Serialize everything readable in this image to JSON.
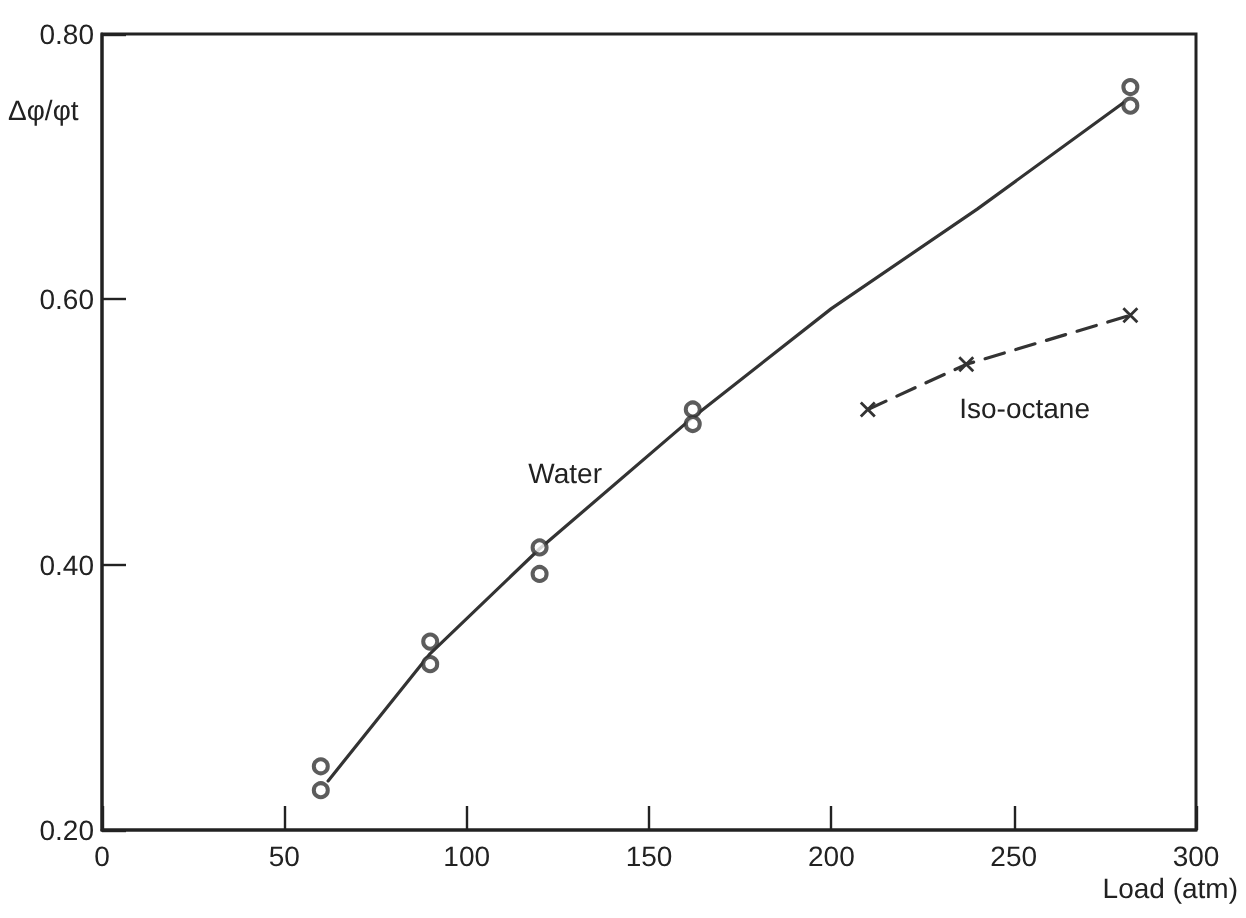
{
  "chart_data": {
    "type": "scatter",
    "ylabel": "Δφ/φt",
    "xlabel": "Load (atm)",
    "xlim": [
      0,
      300
    ],
    "xticks": [
      0,
      50,
      100,
      150,
      200,
      250,
      300
    ],
    "ylim": [
      0.2,
      0.8
    ],
    "yticks": [
      {
        "value": 0.2,
        "label": "0.20"
      },
      {
        "value": 0.4,
        "label": "0.40"
      },
      {
        "value": 0.6,
        "label": "0.60"
      },
      {
        "value": 0.8,
        "label": "0.80"
      }
    ],
    "grid": false,
    "series": [
      {
        "type": "scatter",
        "marker": "circle",
        "color": "#333333",
        "x": [
          60,
          60,
          90,
          90,
          120,
          120,
          162,
          162,
          282,
          282
        ],
        "values": [
          0.248,
          0.23,
          0.342,
          0.325,
          0.413,
          0.393,
          0.517,
          0.506,
          0.76,
          0.746
        ]
      },
      {
        "type": "line",
        "marker": "none",
        "line_style": "solid",
        "color": "#333333",
        "x": [
          62,
          90,
          120,
          162,
          200,
          240,
          280
        ],
        "values": [
          0.237,
          0.333,
          0.412,
          0.511,
          0.593,
          0.668,
          0.748
        ]
      },
      {
        "type": "line",
        "marker": "cross",
        "line_style": "dashed",
        "color": "#333333",
        "x": [
          210,
          237,
          282
        ],
        "values": [
          0.517,
          0.551,
          0.588
        ]
      }
    ],
    "annotations": [
      "Water",
      "Iso-octane"
    ]
  }
}
